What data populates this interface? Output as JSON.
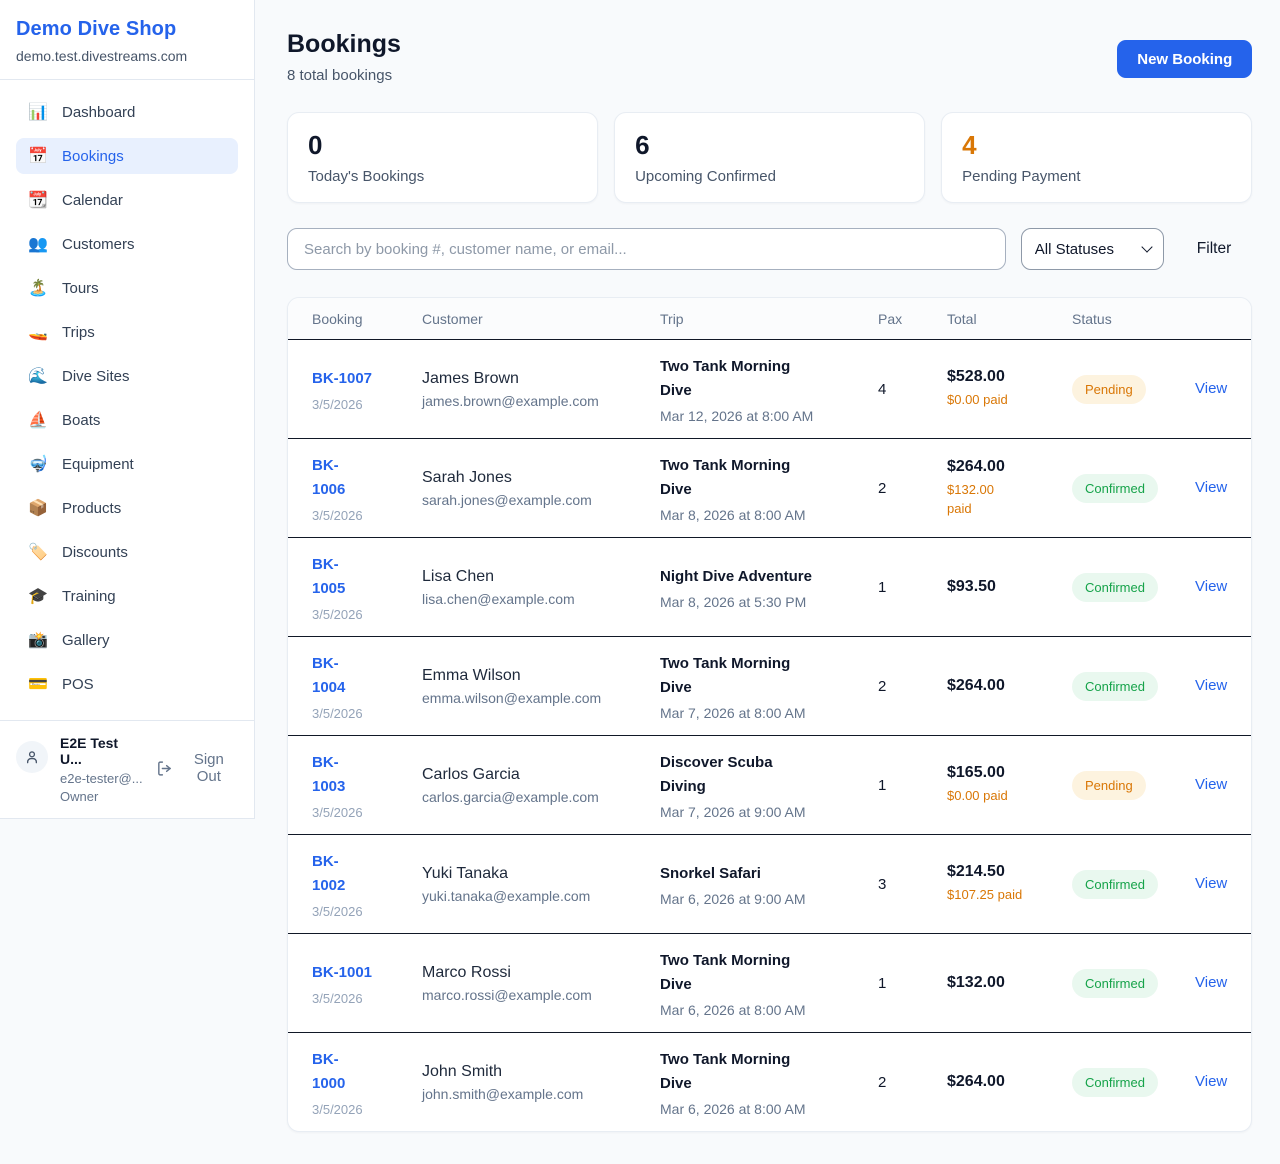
{
  "colors": {
    "accent_blue": "#2563eb",
    "pending_orange": "#d97706",
    "confirmed_green": "#16a34a"
  },
  "sidebar": {
    "brand": "Demo Dive Shop",
    "domain": "demo.test.divestreams.com",
    "items": [
      {
        "icon": "📊",
        "icon_name": "bar-chart-icon",
        "label": "Dashboard",
        "active": false
      },
      {
        "icon": "📅",
        "icon_name": "calendar-icon",
        "label": "Bookings",
        "active": true
      },
      {
        "icon": "📆",
        "icon_name": "tear-off-calendar-icon",
        "label": "Calendar",
        "active": false
      },
      {
        "icon": "👥",
        "icon_name": "people-icon",
        "label": "Customers",
        "active": false
      },
      {
        "icon": "🏝️",
        "icon_name": "island-icon",
        "label": "Tours",
        "active": false
      },
      {
        "icon": "🚤",
        "icon_name": "speedboat-icon",
        "label": "Trips",
        "active": false
      },
      {
        "icon": "🌊",
        "icon_name": "wave-icon",
        "label": "Dive Sites",
        "active": false
      },
      {
        "icon": "⛵",
        "icon_name": "sailboat-icon",
        "label": "Boats",
        "active": false
      },
      {
        "icon": "🤿",
        "icon_name": "diving-mask-icon",
        "label": "Equipment",
        "active": false
      },
      {
        "icon": "📦",
        "icon_name": "package-icon",
        "label": "Products",
        "active": false
      },
      {
        "icon": "🏷️",
        "icon_name": "tag-icon",
        "label": "Discounts",
        "active": false
      },
      {
        "icon": "🎓",
        "icon_name": "graduation-cap-icon",
        "label": "Training",
        "active": false
      },
      {
        "icon": "📸",
        "icon_name": "camera-icon",
        "label": "Gallery",
        "active": false
      },
      {
        "icon": "💳",
        "icon_name": "credit-card-icon",
        "label": "POS",
        "active": false
      }
    ],
    "user": {
      "name": "E2E Test U...",
      "email": "e2e-tester@...",
      "role": "Owner",
      "sign_out_label": "Sign Out"
    }
  },
  "header": {
    "title": "Bookings",
    "subtitle": "8 total bookings",
    "new_booking_label": "New Booking"
  },
  "stats": [
    {
      "value": "0",
      "label": "Today's Bookings",
      "accent": false
    },
    {
      "value": "6",
      "label": "Upcoming Confirmed",
      "accent": false
    },
    {
      "value": "4",
      "label": "Pending Payment",
      "accent": true
    }
  ],
  "filters": {
    "search_placeholder": "Search by booking #, customer name, or email...",
    "status_selected": "All Statuses",
    "filter_label": "Filter"
  },
  "table": {
    "headers": [
      "Booking",
      "Customer",
      "Trip",
      "Pax",
      "Total",
      "Status"
    ],
    "rows": [
      {
        "id": "BK-1007",
        "date": "3/5/2026",
        "customer": "James Brown",
        "email": "james.brown@example.com",
        "trip": "Two Tank Morning\nDive",
        "when": "Mar 12, 2026 at 8:00 AM",
        "pax": "4",
        "total": "$528.00",
        "paid": "$0.00 paid",
        "status": "Pending",
        "action": "View"
      },
      {
        "id": "BK-\n1006",
        "date": "3/5/2026",
        "customer": "Sarah Jones",
        "email": "sarah.jones@example.com",
        "trip": "Two Tank Morning\nDive",
        "when": "Mar 8, 2026 at 8:00 AM",
        "pax": "2",
        "total": "$264.00",
        "paid": "$132.00\npaid",
        "status": "Confirmed",
        "action": "View"
      },
      {
        "id": "BK-\n1005",
        "date": "3/5/2026",
        "customer": "Lisa Chen",
        "email": "lisa.chen@example.com",
        "trip": "Night Dive Adventure",
        "when": "Mar 8, 2026 at 5:30 PM",
        "pax": "1",
        "total": "$93.50",
        "paid": null,
        "status": "Confirmed",
        "action": "View"
      },
      {
        "id": "BK-\n1004",
        "date": "3/5/2026",
        "customer": "Emma Wilson",
        "email": "emma.wilson@example.com",
        "trip": "Two Tank Morning\nDive",
        "when": "Mar 7, 2026 at 8:00 AM",
        "pax": "2",
        "total": "$264.00",
        "paid": null,
        "status": "Confirmed",
        "action": "View"
      },
      {
        "id": "BK-\n1003",
        "date": "3/5/2026",
        "customer": "Carlos Garcia",
        "email": "carlos.garcia@example.com",
        "trip": "Discover Scuba\nDiving",
        "when": "Mar 7, 2026 at 9:00 AM",
        "pax": "1",
        "total": "$165.00",
        "paid": "$0.00 paid",
        "status": "Pending",
        "action": "View"
      },
      {
        "id": "BK-\n1002",
        "date": "3/5/2026",
        "customer": "Yuki Tanaka",
        "email": "yuki.tanaka@example.com",
        "trip": "Snorkel Safari",
        "when": "Mar 6, 2026 at 9:00 AM",
        "pax": "3",
        "total": "$214.50",
        "paid": "$107.25 paid",
        "status": "Confirmed",
        "action": "View"
      },
      {
        "id": "BK-1001",
        "date": "3/5/2026",
        "customer": "Marco Rossi",
        "email": "marco.rossi@example.com",
        "trip": "Two Tank Morning\nDive",
        "when": "Mar 6, 2026 at 8:00 AM",
        "pax": "1",
        "total": "$132.00",
        "paid": null,
        "status": "Confirmed",
        "action": "View"
      },
      {
        "id": "BK-\n1000",
        "date": "3/5/2026",
        "customer": "John Smith",
        "email": "john.smith@example.com",
        "trip": "Two Tank Morning\nDive",
        "when": "Mar 6, 2026 at 8:00 AM",
        "pax": "2",
        "total": "$264.00",
        "paid": null,
        "status": "Confirmed",
        "action": "View"
      }
    ]
  }
}
